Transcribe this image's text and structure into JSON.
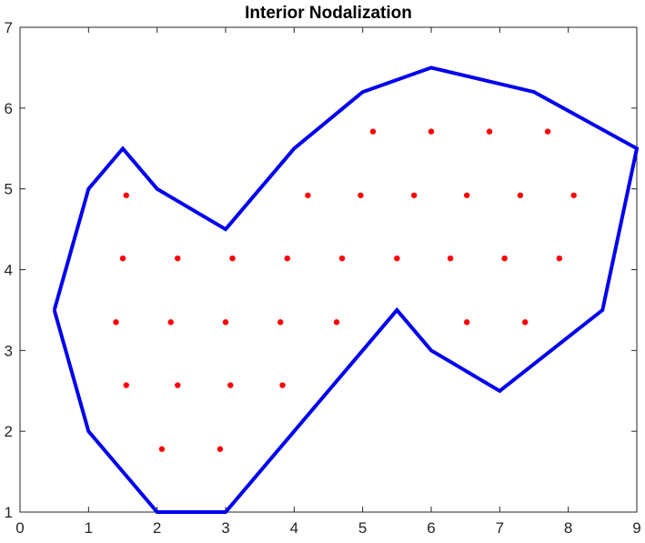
{
  "chart_data": {
    "type": "scatter",
    "title": "Interior Nodalization",
    "xlabel": "",
    "ylabel": "",
    "xlim": [
      0,
      9
    ],
    "ylim": [
      1,
      7
    ],
    "x_ticks": [
      0,
      1,
      2,
      3,
      4,
      5,
      6,
      7,
      8,
      9
    ],
    "y_ticks": [
      1,
      2,
      3,
      4,
      5,
      6,
      7
    ],
    "x_tick_labels": [
      "0",
      "1",
      "2",
      "3",
      "4",
      "5",
      "6",
      "7",
      "8",
      "9"
    ],
    "y_tick_labels": [
      "1",
      "2",
      "3",
      "4",
      "5",
      "6",
      "7"
    ],
    "grid": false,
    "boundary": {
      "color": "#0000ee",
      "points": [
        [
          0.5,
          3.5
        ],
        [
          1,
          5
        ],
        [
          1.5,
          5.5
        ],
        [
          2,
          5
        ],
        [
          3,
          4.5
        ],
        [
          4,
          5.5
        ],
        [
          5,
          6.2
        ],
        [
          6,
          6.5
        ],
        [
          7.5,
          6.2
        ],
        [
          9,
          5.5
        ],
        [
          8.5,
          3.5
        ],
        [
          7,
          2.5
        ],
        [
          6,
          3
        ],
        [
          5.5,
          3.5
        ],
        [
          3,
          1
        ],
        [
          2,
          1
        ],
        [
          1,
          2
        ],
        [
          0.5,
          3.5
        ]
      ]
    },
    "nodes": {
      "color": "#ff0000",
      "points": [
        [
          5.15,
          5.71
        ],
        [
          6.0,
          5.71
        ],
        [
          6.85,
          5.71
        ],
        [
          7.7,
          5.71
        ],
        [
          1.55,
          4.92
        ],
        [
          4.2,
          4.92
        ],
        [
          4.97,
          4.92
        ],
        [
          5.75,
          4.92
        ],
        [
          6.52,
          4.92
        ],
        [
          7.3,
          4.92
        ],
        [
          8.08,
          4.92
        ],
        [
          1.5,
          4.14
        ],
        [
          2.3,
          4.14
        ],
        [
          3.1,
          4.14
        ],
        [
          3.9,
          4.14
        ],
        [
          4.7,
          4.14
        ],
        [
          5.5,
          4.14
        ],
        [
          6.28,
          4.14
        ],
        [
          7.07,
          4.14
        ],
        [
          7.87,
          4.14
        ],
        [
          1.4,
          3.35
        ],
        [
          2.2,
          3.35
        ],
        [
          3.0,
          3.35
        ],
        [
          3.8,
          3.35
        ],
        [
          4.62,
          3.35
        ],
        [
          6.52,
          3.35
        ],
        [
          7.37,
          3.35
        ],
        [
          1.55,
          2.57
        ],
        [
          2.3,
          2.57
        ],
        [
          3.07,
          2.57
        ],
        [
          3.83,
          2.57
        ],
        [
          2.07,
          1.78
        ],
        [
          2.92,
          1.78
        ]
      ]
    }
  }
}
